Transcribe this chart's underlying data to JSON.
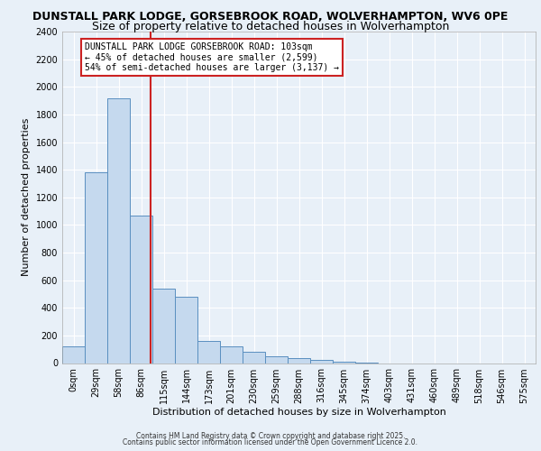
{
  "title1": "DUNSTALL PARK LODGE, GORSEBROOK ROAD, WOLVERHAMPTON, WV6 0PE",
  "title2": "Size of property relative to detached houses in Wolverhampton",
  "xlabel": "Distribution of detached houses by size in Wolverhampton",
  "ylabel": "Number of detached properties",
  "footnote1": "Contains HM Land Registry data © Crown copyright and database right 2025.",
  "footnote2": "Contains public sector information licensed under the Open Government Licence 2.0.",
  "bin_labels": [
    "0sqm",
    "29sqm",
    "58sqm",
    "86sqm",
    "115sqm",
    "144sqm",
    "173sqm",
    "201sqm",
    "230sqm",
    "259sqm",
    "288sqm",
    "316sqm",
    "345sqm",
    "374sqm",
    "403sqm",
    "431sqm",
    "460sqm",
    "489sqm",
    "518sqm",
    "546sqm",
    "575sqm"
  ],
  "bar_values": [
    120,
    1380,
    1920,
    1070,
    540,
    480,
    160,
    120,
    80,
    50,
    35,
    20,
    10,
    5,
    0,
    0,
    0,
    0,
    0,
    0,
    0
  ],
  "bar_color": "#c5d9ee",
  "bar_edge_color": "#5a8fc0",
  "property_line_x": 3.4,
  "property_line_color": "#cc2222",
  "annotation_text": "DUNSTALL PARK LODGE GORSEBROOK ROAD: 103sqm\n← 45% of detached houses are smaller (2,599)\n54% of semi-detached houses are larger (3,137) →",
  "annotation_box_color": "#ffffff",
  "annotation_box_edge": "#cc2222",
  "ylim": [
    0,
    2400
  ],
  "background_color": "#e8f0f8",
  "plot_background": "#e8f0f8",
  "grid_color": "#ffffff",
  "title1_fontsize": 9,
  "title2_fontsize": 9,
  "tick_fontsize": 7,
  "ylabel_fontsize": 8,
  "xlabel_fontsize": 8,
  "annot_fontsize": 7
}
